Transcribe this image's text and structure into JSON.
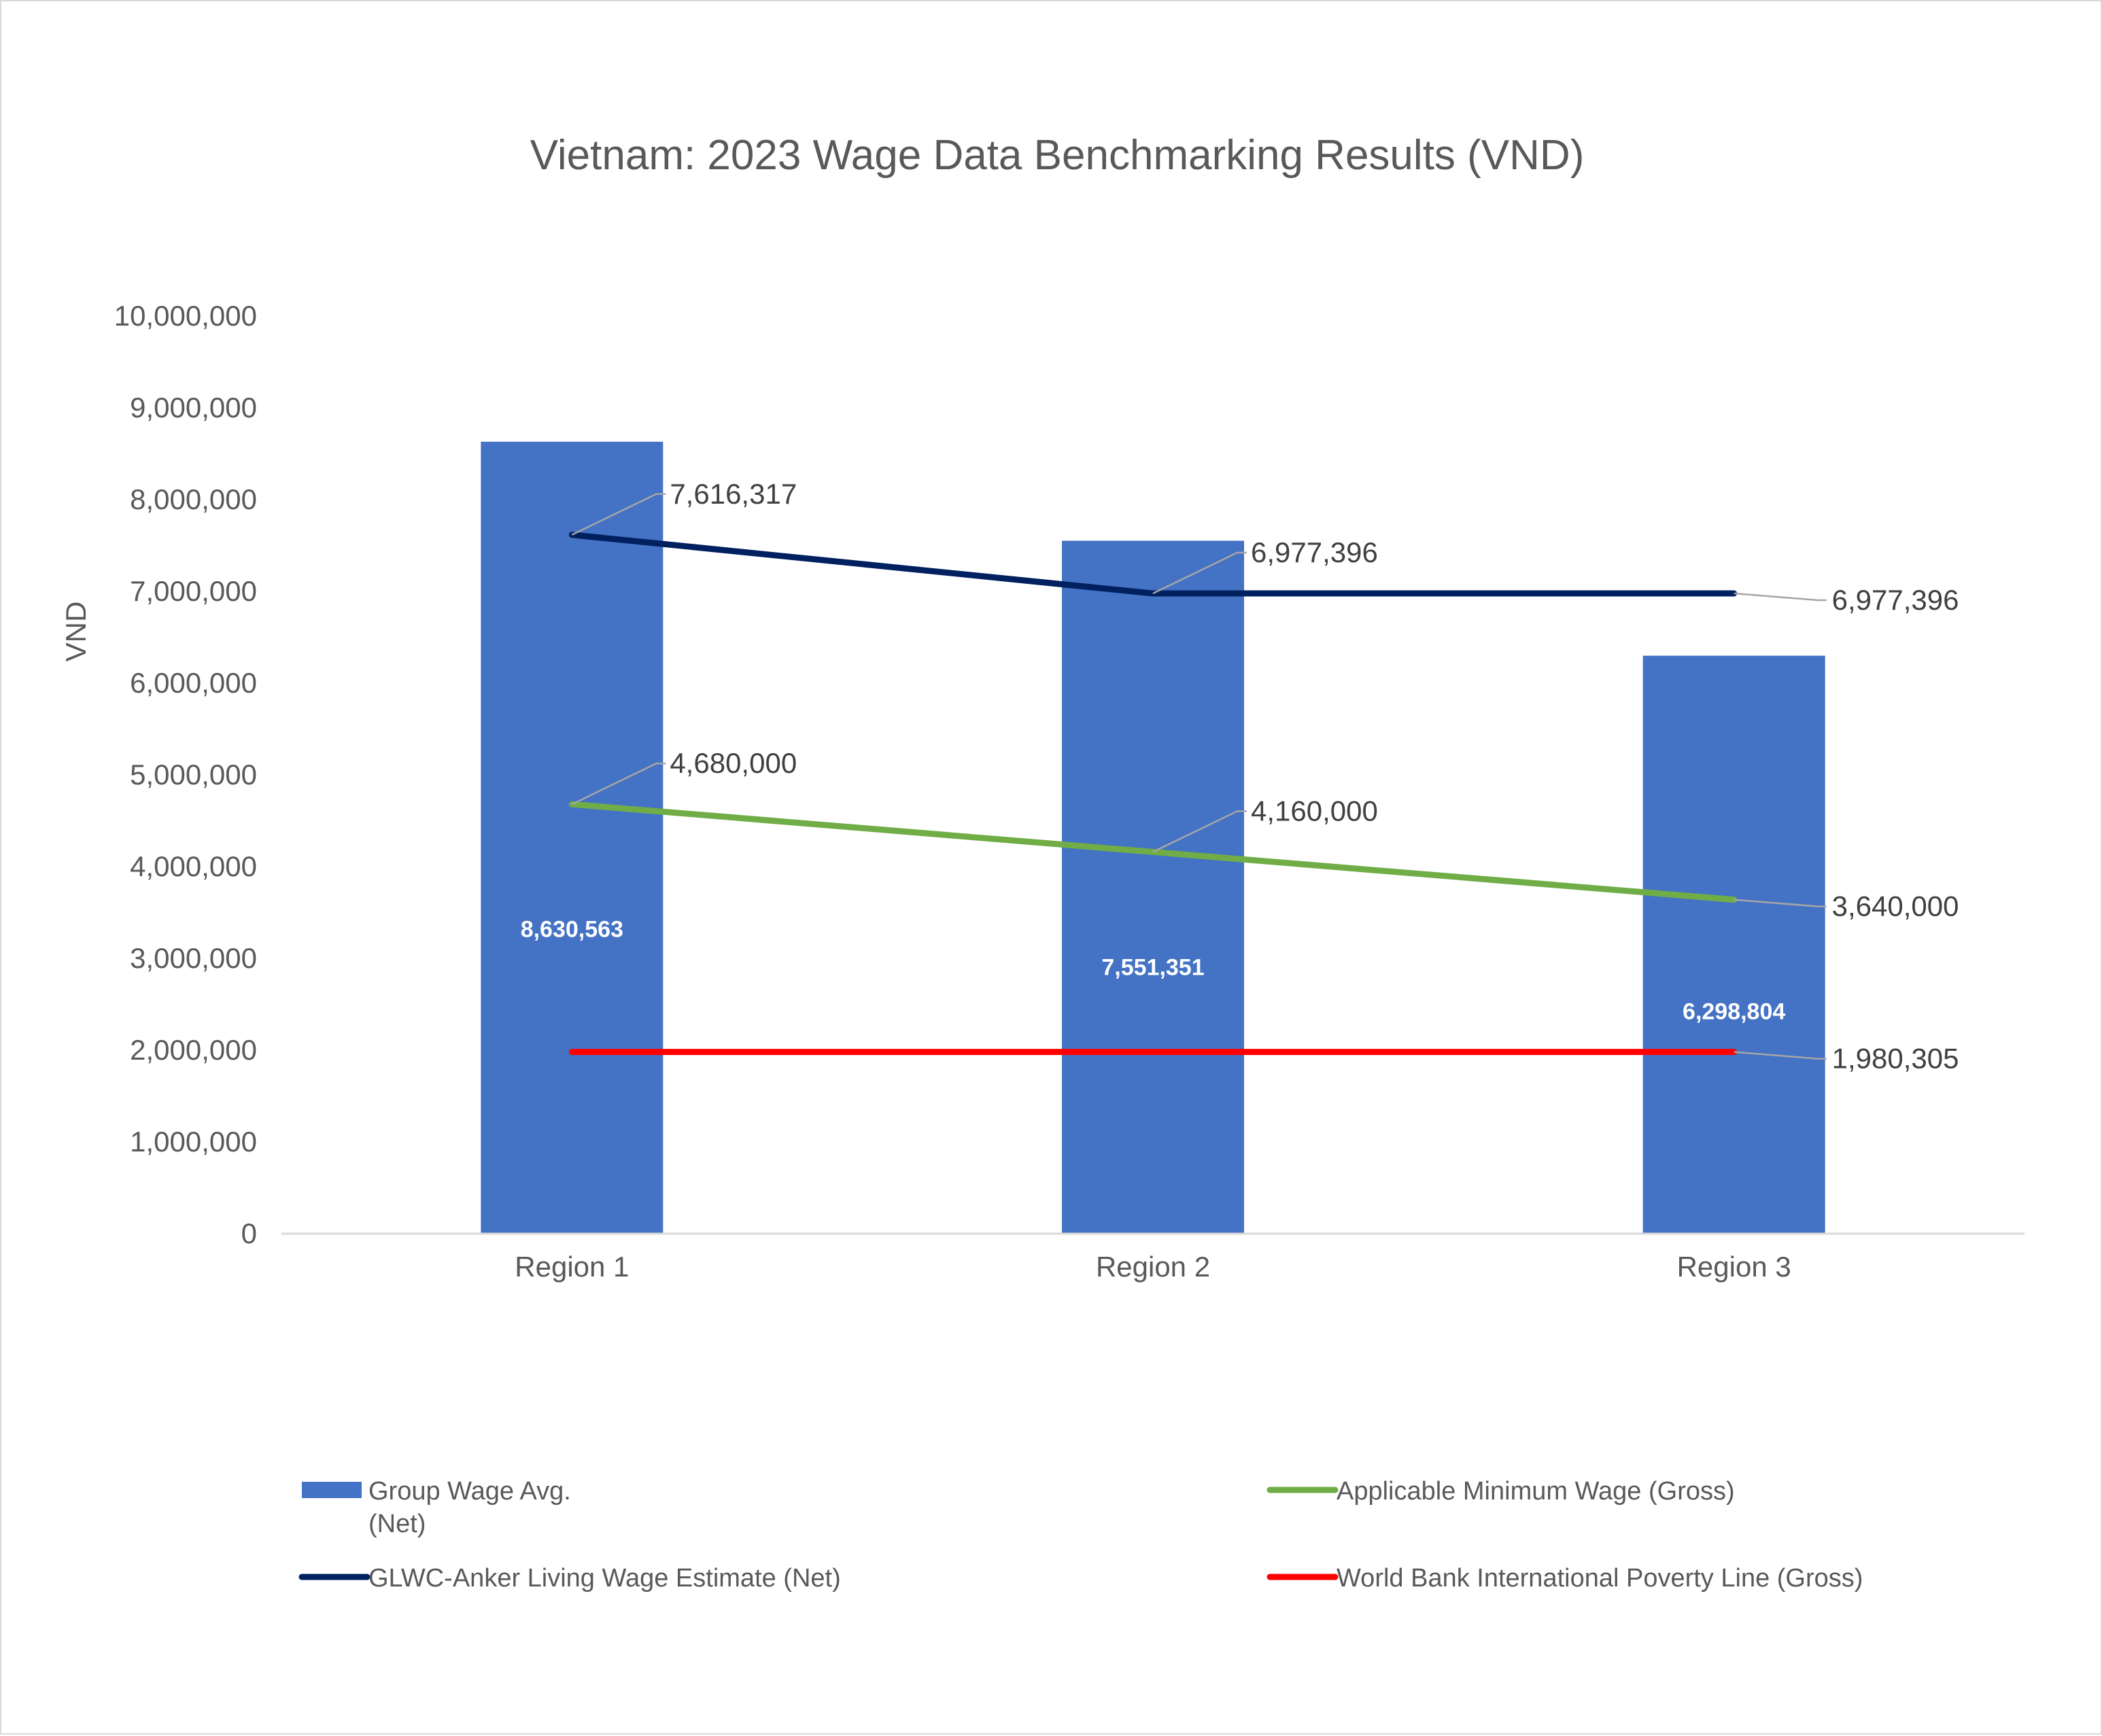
{
  "chart_data": {
    "type": "bar",
    "title": "Vietnam: 2023 Wage Data Benchmarking Results (VND)",
    "xlabel": "",
    "ylabel": "VND",
    "categories": [
      "Region 1",
      "Region 2",
      "Region 3"
    ],
    "ylim": [
      0,
      10000000
    ],
    "yticks": [
      0,
      1000000,
      2000000,
      3000000,
      4000000,
      5000000,
      6000000,
      7000000,
      8000000,
      9000000,
      10000000
    ],
    "ytick_labels": [
      "0",
      "1,000,000",
      "2,000,000",
      "3,000,000",
      "4,000,000",
      "5,000,000",
      "6,000,000",
      "7,000,000",
      "8,000,000",
      "9,000,000",
      "10,000,000"
    ],
    "grid": false,
    "legend_position": "bottom",
    "series": [
      {
        "name": "Group Wage Avg. (Net)",
        "legend_lines": [
          "Group Wage Avg.",
          "(Net)"
        ],
        "kind": "bar",
        "color": "#4472c4",
        "values": [
          8630563,
          7551351,
          6298804
        ],
        "labels": [
          "8,630,563",
          "7,551,351",
          "6,298,804"
        ]
      },
      {
        "name": "GLWC-Anker Living Wage Estimate (Net)",
        "legend_lines": [
          "GLWC-Anker Living Wage Estimate (Net)"
        ],
        "kind": "line",
        "color": "#002060",
        "values": [
          7616317,
          6977396,
          6977396
        ],
        "labels": [
          "7,616,317",
          "6,977,396",
          "6,977,396"
        ]
      },
      {
        "name": "Applicable Minimum Wage (Gross)",
        "legend_lines": [
          "Applicable Minimum Wage (Gross)"
        ],
        "kind": "line",
        "color": "#70ad47",
        "values": [
          4680000,
          4160000,
          3640000
        ],
        "labels": [
          "4,680,000",
          "4,160,000",
          "3,640,000"
        ]
      },
      {
        "name": "World Bank International Poverty Line (Gross)",
        "legend_lines": [
          "World Bank International Poverty Line (Gross)"
        ],
        "kind": "line",
        "color": "#ff0000",
        "values": [
          1980305,
          1980305,
          1980305
        ],
        "labels": [
          "",
          "",
          "1,980,305"
        ]
      }
    ]
  }
}
